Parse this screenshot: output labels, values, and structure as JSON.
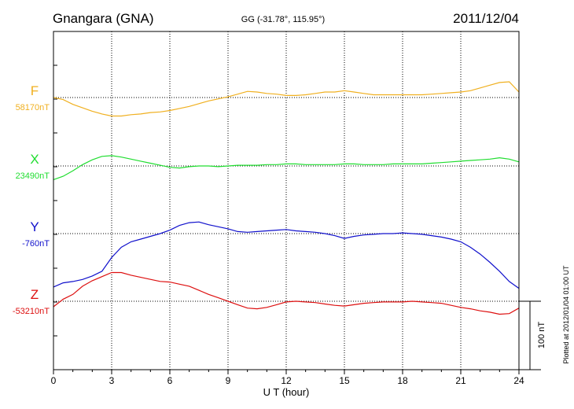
{
  "header": {
    "station": "Gnangara (GNA)",
    "coords": "GG (-31.78°, 115.95°)",
    "date": "2011/12/04"
  },
  "footer_note": "Plotted at 2012/01/04 01:00 UT",
  "scale_label": "100 nT",
  "chart_data": {
    "type": "line",
    "xlabel": "U T (hour)",
    "xlim": [
      0,
      24
    ],
    "xticks": [
      0,
      3,
      6,
      9,
      12,
      15,
      18,
      21,
      24
    ],
    "xtick_labels": [
      "0",
      "3",
      "6",
      "9",
      "12",
      "15",
      "18",
      "21",
      "24"
    ],
    "y_units": "nT relative to baseline",
    "grid": true,
    "colors": {
      "F": "#f0b020",
      "X": "#20dd30",
      "Y": "#1010cc",
      "Z": "#dd1010"
    },
    "series": [
      {
        "name": "F",
        "baseline_label": "58170nT",
        "x": [
          0,
          0.5,
          1,
          1.5,
          2,
          2.5,
          3,
          3.5,
          4,
          4.5,
          5,
          5.5,
          6,
          6.5,
          7,
          7.5,
          8,
          8.5,
          9,
          9.5,
          10,
          10.5,
          11,
          11.5,
          12,
          12.5,
          13,
          13.5,
          14,
          14.5,
          15,
          15.5,
          16,
          16.5,
          17,
          17.5,
          18,
          18.5,
          19,
          19.5,
          20,
          20.5,
          21,
          21.5,
          22,
          22.5,
          23,
          23.5,
          24
        ],
        "values": [
          0,
          -3,
          -10,
          -15,
          -20,
          -24,
          -27,
          -27,
          -25,
          -24,
          -22,
          -21,
          -19,
          -16,
          -13,
          -9,
          -5,
          -2,
          1,
          5,
          9,
          8,
          6,
          5,
          3,
          3,
          4,
          6,
          8,
          8,
          10,
          8,
          6,
          4,
          4,
          4,
          4,
          4,
          4,
          5,
          6,
          7,
          8,
          10,
          14,
          18,
          22,
          23,
          8
        ]
      },
      {
        "name": "X",
        "baseline_label": "23490nT",
        "x": [
          0,
          0.5,
          1,
          1.5,
          2,
          2.5,
          3,
          3.5,
          4,
          4.5,
          5,
          5.5,
          6,
          6.5,
          7,
          7.5,
          8,
          8.5,
          9,
          9.5,
          10,
          10.5,
          11,
          11.5,
          12,
          12.5,
          13,
          13.5,
          14,
          14.5,
          15,
          15.5,
          16,
          16.5,
          17,
          17.5,
          18,
          18.5,
          19,
          19.5,
          20,
          20.5,
          21,
          21.5,
          22,
          22.5,
          23,
          23.5,
          24
        ],
        "values": [
          -20,
          -15,
          -7,
          2,
          9,
          14,
          15,
          13,
          10,
          7,
          4,
          1,
          -2,
          -3,
          -1,
          0,
          0,
          -1,
          0,
          1,
          1,
          1,
          2,
          2,
          3,
          3,
          2,
          2,
          2,
          2,
          3,
          3,
          2,
          2,
          2,
          3,
          3,
          3,
          3,
          4,
          5,
          6,
          7,
          8,
          9,
          10,
          12,
          10,
          6
        ]
      },
      {
        "name": "Y",
        "baseline_label": "-760nT",
        "x": [
          0,
          0.5,
          1,
          1.5,
          2,
          2.5,
          3,
          3.5,
          4,
          4.5,
          5,
          5.5,
          6,
          6.5,
          7,
          7.5,
          8,
          8.5,
          9,
          9.5,
          10,
          10.5,
          11,
          11.5,
          12,
          12.5,
          13,
          13.5,
          14,
          14.5,
          15,
          15.5,
          16,
          16.5,
          17,
          17.5,
          18,
          18.5,
          19,
          19.5,
          20,
          20.5,
          21,
          21.5,
          22,
          22.5,
          23,
          23.5,
          24
        ],
        "values": [
          -78,
          -72,
          -70,
          -67,
          -62,
          -55,
          -35,
          -20,
          -12,
          -8,
          -4,
          0,
          5,
          12,
          16,
          17,
          13,
          10,
          7,
          3,
          2,
          3,
          4,
          5,
          6,
          4,
          3,
          2,
          0,
          -3,
          -7,
          -4,
          -2,
          -1,
          0,
          0,
          1,
          0,
          -1,
          -3,
          -5,
          -8,
          -12,
          -20,
          -30,
          -42,
          -55,
          -70,
          -80
        ]
      },
      {
        "name": "Z",
        "baseline_label": "-53210nT",
        "x": [
          0,
          0.5,
          1,
          1.5,
          2,
          2.5,
          3,
          3.5,
          4,
          4.5,
          5,
          5.5,
          6,
          6.5,
          7,
          7.5,
          8,
          8.5,
          9,
          9.5,
          10,
          10.5,
          11,
          11.5,
          12,
          12.5,
          13,
          13.5,
          14,
          14.5,
          15,
          15.5,
          16,
          16.5,
          17,
          17.5,
          18,
          18.5,
          19,
          19.5,
          20,
          20.5,
          21,
          21.5,
          22,
          22.5,
          23,
          23.5,
          24
        ],
        "values": [
          -8,
          3,
          10,
          22,
          30,
          36,
          42,
          42,
          38,
          35,
          32,
          29,
          28,
          25,
          22,
          16,
          10,
          5,
          0,
          -5,
          -10,
          -11,
          -9,
          -5,
          -1,
          0,
          -1,
          -2,
          -4,
          -6,
          -7,
          -5,
          -3,
          -2,
          -1,
          -1,
          -1,
          0,
          -1,
          -2,
          -3,
          -6,
          -9,
          -11,
          -14,
          -16,
          -19,
          -18,
          -10
        ]
      }
    ]
  }
}
